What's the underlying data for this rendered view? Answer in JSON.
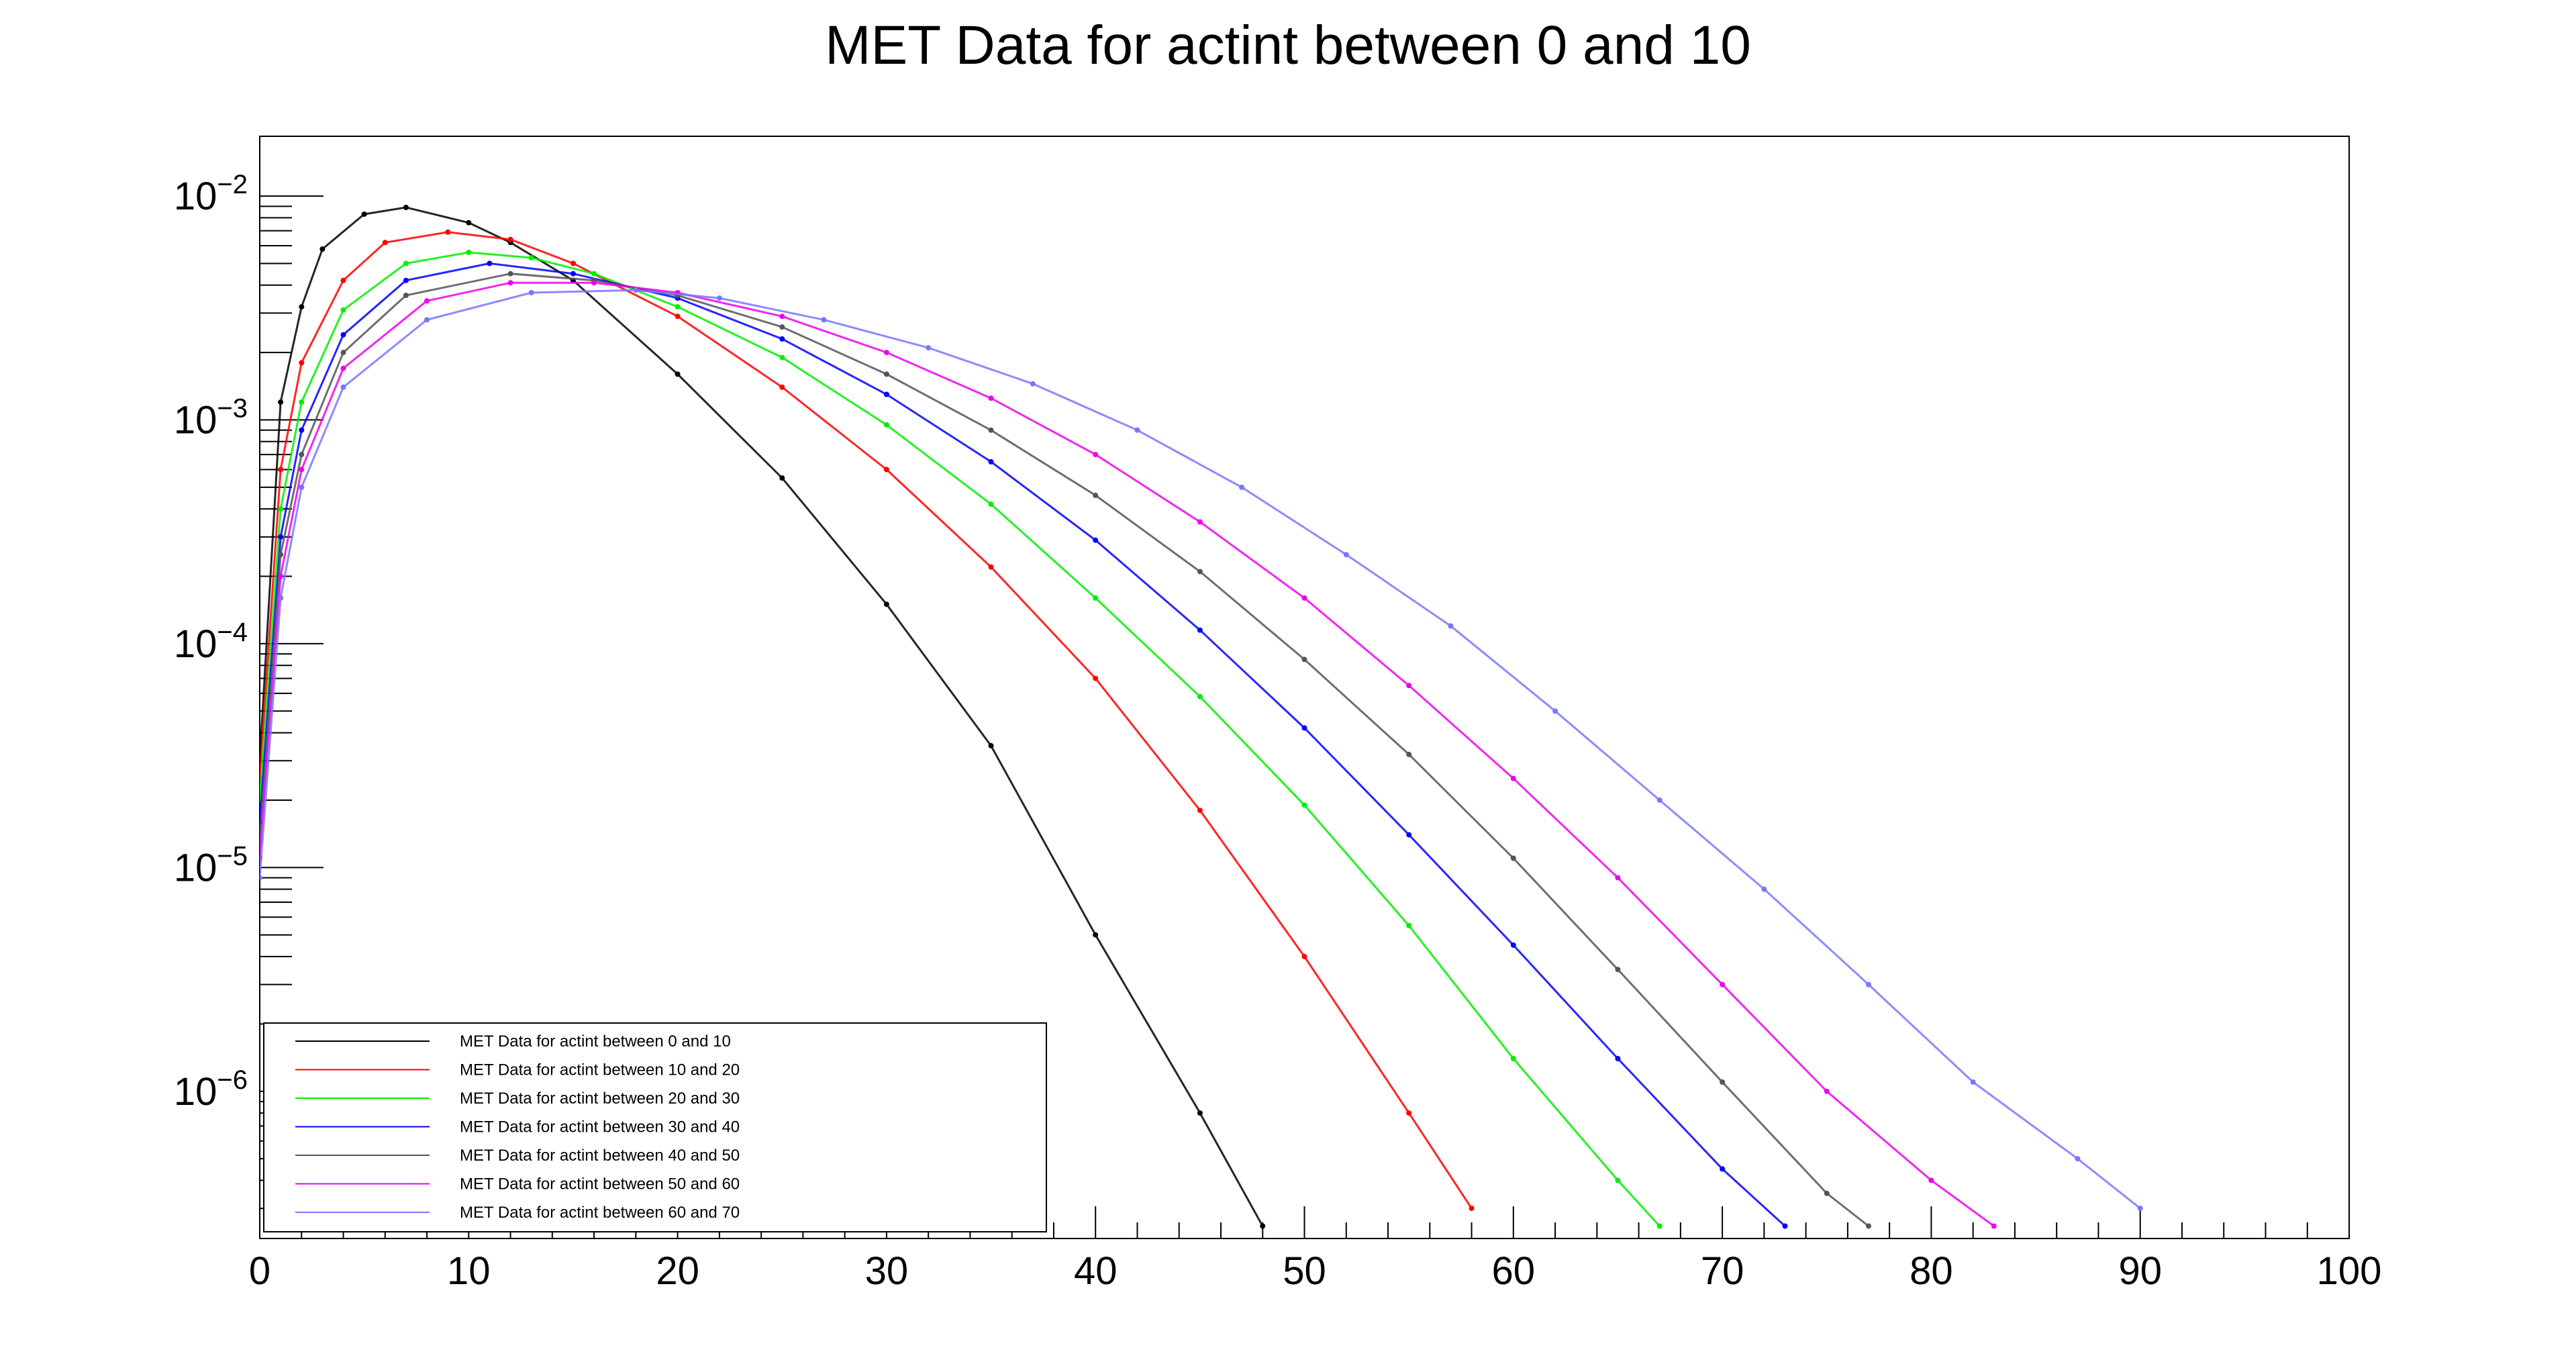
{
  "chart_data": {
    "type": "line",
    "title": "MET Data for actint between 0 and 10",
    "xlabel": "",
    "ylabel": "",
    "xlim": [
      0,
      100
    ],
    "ylim": [
      2.2e-07,
      0.0185
    ],
    "yscale": "log",
    "grid": false,
    "legend_position": "bottom-left",
    "x_ticks": [
      0,
      10,
      20,
      30,
      40,
      50,
      60,
      70,
      80,
      90,
      100
    ],
    "y_ticks": [
      {
        "value": 0.01,
        "base": "10",
        "exp": "−2"
      },
      {
        "value": 0.001,
        "base": "10",
        "exp": "−3"
      },
      {
        "value": 0.0001,
        "base": "10",
        "exp": "−4"
      },
      {
        "value": 1e-05,
        "base": "10",
        "exp": "−5"
      },
      {
        "value": 1e-06,
        "base": "10",
        "exp": "−6"
      }
    ],
    "series": [
      {
        "name": "MET Data for actint between 0 and 10",
        "color": "#000000",
        "points": [
          [
            0,
            3e-05
          ],
          [
            1,
            0.0012
          ],
          [
            2,
            0.0032
          ],
          [
            3,
            0.0058
          ],
          [
            5,
            0.0083
          ],
          [
            7,
            0.0089
          ],
          [
            10,
            0.0076
          ],
          [
            12,
            0.0062
          ],
          [
            15,
            0.0042
          ],
          [
            20,
            0.0016
          ],
          [
            25,
            0.00055
          ],
          [
            30,
            0.00015
          ],
          [
            35,
            3.5e-05
          ],
          [
            40,
            5e-06
          ],
          [
            45,
            8e-07
          ],
          [
            48,
            2.5e-07
          ]
        ]
      },
      {
        "name": "MET Data for actint between 10 and 20",
        "color": "#ff0000",
        "points": [
          [
            0,
            2.5e-05
          ],
          [
            1,
            0.0006
          ],
          [
            2,
            0.0018
          ],
          [
            4,
            0.0042
          ],
          [
            6,
            0.0062
          ],
          [
            9,
            0.0069
          ],
          [
            12,
            0.0064
          ],
          [
            15,
            0.005
          ],
          [
            20,
            0.0029
          ],
          [
            25,
            0.0014
          ],
          [
            30,
            0.0006
          ],
          [
            35,
            0.00022
          ],
          [
            40,
            7e-05
          ],
          [
            45,
            1.8e-05
          ],
          [
            50,
            4e-06
          ],
          [
            55,
            8e-07
          ],
          [
            58,
            3e-07
          ]
        ]
      },
      {
        "name": "MET Data for actint between 20 and 30",
        "color": "#00ee00",
        "points": [
          [
            0,
            2e-05
          ],
          [
            1,
            0.0004
          ],
          [
            2,
            0.0012
          ],
          [
            4,
            0.0031
          ],
          [
            7,
            0.005
          ],
          [
            10,
            0.0056
          ],
          [
            13,
            0.0053
          ],
          [
            16,
            0.0045
          ],
          [
            20,
            0.0032
          ],
          [
            25,
            0.0019
          ],
          [
            30,
            0.00095
          ],
          [
            35,
            0.00042
          ],
          [
            40,
            0.00016
          ],
          [
            45,
            5.8e-05
          ],
          [
            50,
            1.9e-05
          ],
          [
            55,
            5.5e-06
          ],
          [
            60,
            1.4e-06
          ],
          [
            65,
            4e-07
          ],
          [
            67,
            2.5e-07
          ]
        ]
      },
      {
        "name": "MET Data for actint between 30 and 40",
        "color": "#0000ff",
        "points": [
          [
            0,
            1.6e-05
          ],
          [
            1,
            0.0003
          ],
          [
            2,
            0.0009
          ],
          [
            4,
            0.0024
          ],
          [
            7,
            0.0042
          ],
          [
            11,
            0.005
          ],
          [
            15,
            0.0045
          ],
          [
            20,
            0.0035
          ],
          [
            25,
            0.0023
          ],
          [
            30,
            0.0013
          ],
          [
            35,
            0.00065
          ],
          [
            40,
            0.00029
          ],
          [
            45,
            0.000115
          ],
          [
            50,
            4.2e-05
          ],
          [
            55,
            1.4e-05
          ],
          [
            60,
            4.5e-06
          ],
          [
            65,
            1.4e-06
          ],
          [
            70,
            4.5e-07
          ],
          [
            73,
            2.5e-07
          ]
        ]
      },
      {
        "name": "MET Data for actint between 40 and 50",
        "color": "#555555",
        "points": [
          [
            0,
            1.3e-05
          ],
          [
            1,
            0.00025
          ],
          [
            2,
            0.0007
          ],
          [
            4,
            0.002
          ],
          [
            7,
            0.0036
          ],
          [
            12,
            0.0045
          ],
          [
            16,
            0.0042
          ],
          [
            20,
            0.0036
          ],
          [
            25,
            0.0026
          ],
          [
            30,
            0.0016
          ],
          [
            35,
            0.0009
          ],
          [
            40,
            0.00046
          ],
          [
            45,
            0.00021
          ],
          [
            50,
            8.5e-05
          ],
          [
            55,
            3.2e-05
          ],
          [
            60,
            1.1e-05
          ],
          [
            65,
            3.5e-06
          ],
          [
            70,
            1.1e-06
          ],
          [
            75,
            3.5e-07
          ],
          [
            77,
            2.5e-07
          ]
        ]
      },
      {
        "name": "MET Data for actint between 50 and 60",
        "color": "#ee00ee",
        "points": [
          [
            0,
            1.1e-05
          ],
          [
            1,
            0.0002
          ],
          [
            2,
            0.0006
          ],
          [
            4,
            0.0017
          ],
          [
            8,
            0.0034
          ],
          [
            12,
            0.0041
          ],
          [
            16,
            0.0041
          ],
          [
            20,
            0.0037
          ],
          [
            25,
            0.0029
          ],
          [
            30,
            0.002
          ],
          [
            35,
            0.00125
          ],
          [
            40,
            0.0007
          ],
          [
            45,
            0.00035
          ],
          [
            50,
            0.00016
          ],
          [
            55,
            6.5e-05
          ],
          [
            60,
            2.5e-05
          ],
          [
            65,
            9e-06
          ],
          [
            70,
            3e-06
          ],
          [
            75,
            1e-06
          ],
          [
            80,
            4e-07
          ],
          [
            83,
            2.5e-07
          ]
        ]
      },
      {
        "name": "MET Data for actint between 60 and 70",
        "color": "#7777ff",
        "points": [
          [
            0,
            9e-06
          ],
          [
            1,
            0.00016
          ],
          [
            2,
            0.0005
          ],
          [
            4,
            0.0014
          ],
          [
            8,
            0.0028
          ],
          [
            13,
            0.0037
          ],
          [
            18,
            0.0038
          ],
          [
            22,
            0.0035
          ],
          [
            27,
            0.0028
          ],
          [
            32,
            0.0021
          ],
          [
            37,
            0.00145
          ],
          [
            42,
            0.0009
          ],
          [
            47,
            0.0005
          ],
          [
            52,
            0.00025
          ],
          [
            57,
            0.00012
          ],
          [
            62,
            5e-05
          ],
          [
            67,
            2e-05
          ],
          [
            72,
            8e-06
          ],
          [
            77,
            3e-06
          ],
          [
            82,
            1.1e-06
          ],
          [
            87,
            5e-07
          ],
          [
            90,
            3e-07
          ]
        ]
      }
    ]
  }
}
